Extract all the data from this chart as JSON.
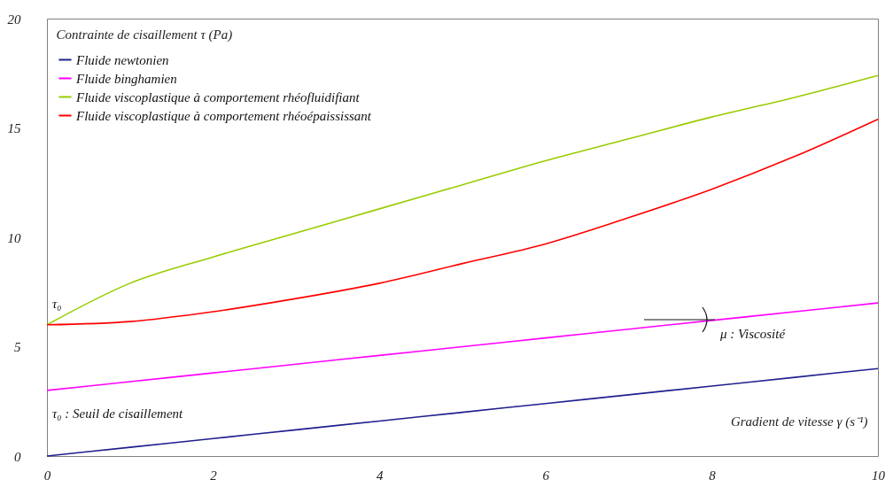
{
  "chart_data": {
    "type": "line",
    "xlabel": "Gradient de vitesse γ (s⁻¹)",
    "ylabel": "Contrainte de cisaillement τ (Pa)",
    "x": [
      0,
      1,
      2,
      3,
      4,
      5,
      6,
      7,
      8,
      9,
      10
    ],
    "series": [
      {
        "name": "Fluide newtonien",
        "color": "#1f1f8f",
        "values": [
          0,
          0.4,
          0.8,
          1.2,
          1.6,
          2.0,
          2.4,
          2.8,
          3.2,
          3.6,
          4.0
        ]
      },
      {
        "name": "Fluide binghamien",
        "color": "#ff00ff",
        "values": [
          3,
          3.4,
          3.8,
          4.2,
          4.6,
          5.0,
          5.4,
          5.8,
          6.2,
          6.6,
          7.0
        ]
      },
      {
        "name": "Fluide viscoplastique à comportement rhéofluidifiant",
        "color": "#99cc00",
        "values": [
          6,
          7.9,
          9.1,
          10.2,
          11.3,
          12.4,
          13.5,
          14.5,
          15.5,
          16.4,
          17.4
        ]
      },
      {
        "name": "Fluide viscoplastique à comportement rhéoépaississant",
        "color": "#ff0000",
        "values": [
          6,
          6.15,
          6.6,
          7.2,
          7.9,
          8.8,
          9.7,
          10.9,
          12.2,
          13.7,
          15.4
        ]
      }
    ],
    "xlim": [
      0,
      10
    ],
    "xticks": [
      0,
      2,
      4,
      6,
      8,
      10
    ],
    "ylim": [
      0,
      20
    ],
    "yticks": [
      0,
      5,
      10,
      15,
      20
    ],
    "grid": false,
    "legend": "top left",
    "marker": "none",
    "line_style": "solid",
    "annotations": [
      "τ₀",
      "τ₀ : Seuil de cisaillement",
      "μ : Viscosité"
    ]
  }
}
